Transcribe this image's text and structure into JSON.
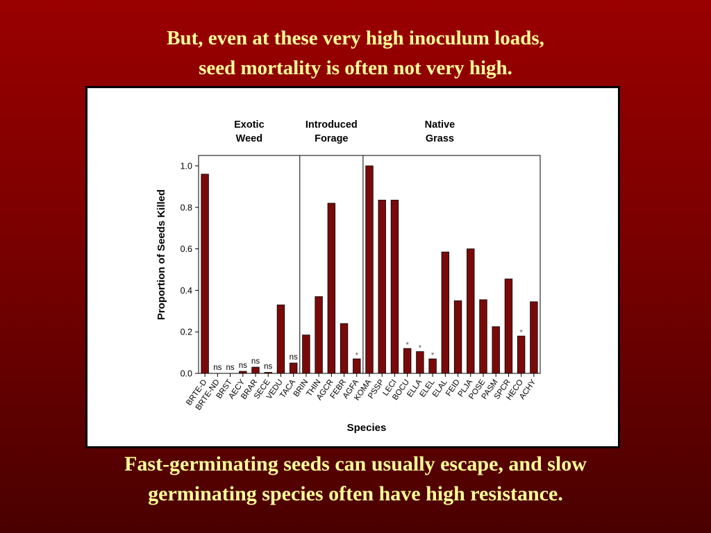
{
  "slide": {
    "title_line1": "But, even at these very high inoculum loads,",
    "title_line2": "seed mortality is often not very high.",
    "caption_line1": "Fast-germinating seeds can usually escape, and slow",
    "caption_line2": "germinating species often have high resistance."
  },
  "colors": {
    "bar": "#7a0a0a",
    "title_text": "#ffff99"
  },
  "chart_data": {
    "type": "bar",
    "xlabel": "Species",
    "ylabel": "Proportion of Seeds Killed",
    "ylim": [
      0,
      1.05
    ],
    "yticks": [
      "0.0",
      "0.2",
      "0.4",
      "0.6",
      "0.8",
      "1.0"
    ],
    "groups": [
      {
        "line1": "Exotic",
        "line2": "Weed"
      },
      {
        "line1": "Introduced",
        "line2": "Forage"
      },
      {
        "line1": "Native",
        "line2": "Grass"
      }
    ],
    "categories": [
      "BRTE-D",
      "BRTE-ND",
      "BRST",
      "AECY",
      "BRAR",
      "SECE",
      "VEDU",
      "TACA",
      "BRIN",
      "THIN",
      "AGCR",
      "FEBR",
      "AGFA",
      "KOMA",
      "PSSP",
      "LECI",
      "BOCU",
      "ELLA",
      "ELEL",
      "ELAL",
      "FEID",
      "PLJA",
      "POSE",
      "PASM",
      "SPCR",
      "HECO",
      "ACHY"
    ],
    "values": [
      0.96,
      0.0,
      0.0,
      0.01,
      0.03,
      0.005,
      0.33,
      0.05,
      0.185,
      0.37,
      0.82,
      0.24,
      0.07,
      1.0,
      0.835,
      0.835,
      0.12,
      0.105,
      0.07,
      0.585,
      0.35,
      0.6,
      0.355,
      0.225,
      0.455,
      0.18,
      0.345
    ],
    "annotations": [
      "",
      "ns",
      "ns",
      "ns",
      "ns",
      "ns",
      "",
      "ns",
      "",
      "",
      "",
      "",
      "*",
      "",
      "",
      "",
      "*",
      "*",
      "*",
      "",
      "",
      "",
      "",
      "",
      "",
      "*",
      ""
    ]
  }
}
